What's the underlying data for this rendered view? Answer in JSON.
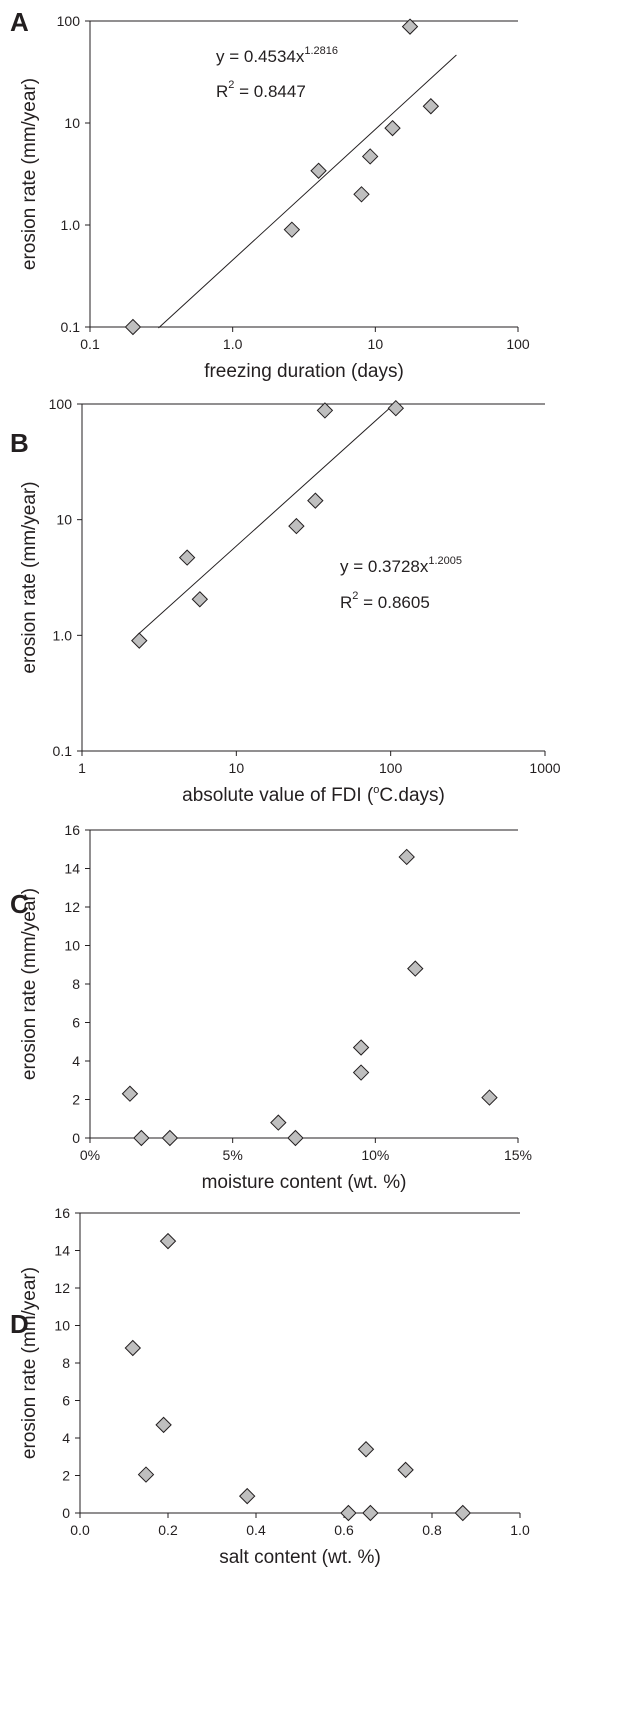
{
  "chart_data": [
    {
      "panel": "A",
      "type": "scatter",
      "xscale": "log",
      "yscale": "log",
      "xlim": [
        0.1,
        100
      ],
      "ylim": [
        0.1,
        100
      ],
      "xticks": [
        "0.1",
        "1.0",
        "10",
        "100"
      ],
      "yticks": [
        "0.1",
        "1.0",
        "10",
        "100"
      ],
      "xlabel": "freezing duration (days)",
      "ylabel": "erosion rate (mm/year)",
      "points": [
        [
          0.2,
          0.1
        ],
        [
          2.6,
          0.9
        ],
        [
          4.0,
          3.4
        ],
        [
          8.0,
          2.0
        ],
        [
          9.2,
          4.7
        ],
        [
          13.2,
          8.9
        ],
        [
          17.5,
          88
        ],
        [
          24.5,
          14.6
        ]
      ],
      "fit": {
        "a": 0.4534,
        "b": 1.2816,
        "x_range": [
          0.302,
          37
        ]
      },
      "equation": {
        "prefix": "y = 0.4534x",
        "exp": "1.2816",
        "r_pre": "R",
        "r_sup": "2",
        "r_post": " = 0.8447"
      }
    },
    {
      "panel": "B",
      "type": "scatter",
      "xscale": "log",
      "yscale": "log",
      "xlim": [
        1,
        1000
      ],
      "ylim": [
        0.1,
        100
      ],
      "xticks": [
        "1",
        "10",
        "100",
        "1000"
      ],
      "yticks": [
        "0.1",
        "1.0",
        "10",
        "100"
      ],
      "xlabel_pre": "absolute value of FDI (",
      "xlabel_sup": "o",
      "xlabel_post": "C.days)",
      "ylabel": "erosion rate (mm/year)",
      "points": [
        [
          2.35,
          0.9
        ],
        [
          4.8,
          4.7
        ],
        [
          5.8,
          2.05
        ],
        [
          24.5,
          8.8
        ],
        [
          32.5,
          14.6
        ],
        [
          37.5,
          88
        ],
        [
          108,
          92
        ]
      ],
      "fit": {
        "a": 0.3728,
        "b": 1.2005,
        "x_range": [
          2.3,
          107
        ]
      },
      "equation": {
        "prefix": "y = 0.3728x",
        "exp": "1.2005",
        "r_pre": "R",
        "r_sup": "2",
        "r_post": " = 0.8605"
      }
    },
    {
      "panel": "C",
      "type": "scatter",
      "xscale": "linear",
      "yscale": "linear",
      "xlim": [
        0,
        0.15
      ],
      "ylim": [
        0,
        16
      ],
      "xticks": [
        "0%",
        "5%",
        "10%",
        "15%"
      ],
      "yticks": [
        "0",
        "2",
        "4",
        "6",
        "8",
        "10",
        "12",
        "14",
        "16"
      ],
      "xlabel": "moisture content (wt. %)",
      "ylabel": "erosion rate (mm/year)",
      "points": [
        [
          0.014,
          2.3
        ],
        [
          0.018,
          0.0
        ],
        [
          0.028,
          0.0
        ],
        [
          0.066,
          0.8
        ],
        [
          0.072,
          0.0
        ],
        [
          0.095,
          4.7
        ],
        [
          0.095,
          3.4
        ],
        [
          0.111,
          14.6
        ],
        [
          0.114,
          8.8
        ],
        [
          0.14,
          2.1
        ]
      ]
    },
    {
      "panel": "D",
      "type": "scatter",
      "xscale": "linear",
      "yscale": "linear",
      "xlim": [
        0,
        1.0
      ],
      "ylim": [
        0,
        16
      ],
      "xticks": [
        "0.0",
        "0.2",
        "0.4",
        "0.6",
        "0.8",
        "1.0"
      ],
      "yticks": [
        "0",
        "2",
        "4",
        "6",
        "8",
        "10",
        "12",
        "14",
        "16"
      ],
      "xlabel": "salt content (wt. %)",
      "ylabel": "erosion rate (mm/year)",
      "points": [
        [
          0.12,
          8.8
        ],
        [
          0.15,
          2.05
        ],
        [
          0.19,
          4.7
        ],
        [
          0.2,
          14.5
        ],
        [
          0.38,
          0.9
        ],
        [
          0.61,
          0.0
        ],
        [
          0.65,
          3.4
        ],
        [
          0.66,
          0.0
        ],
        [
          0.74,
          2.3
        ],
        [
          0.87,
          0.0
        ]
      ]
    }
  ],
  "colors": {
    "marker_fill": "#bfbfbf",
    "stroke": "#231f20",
    "text": "#231f20"
  }
}
